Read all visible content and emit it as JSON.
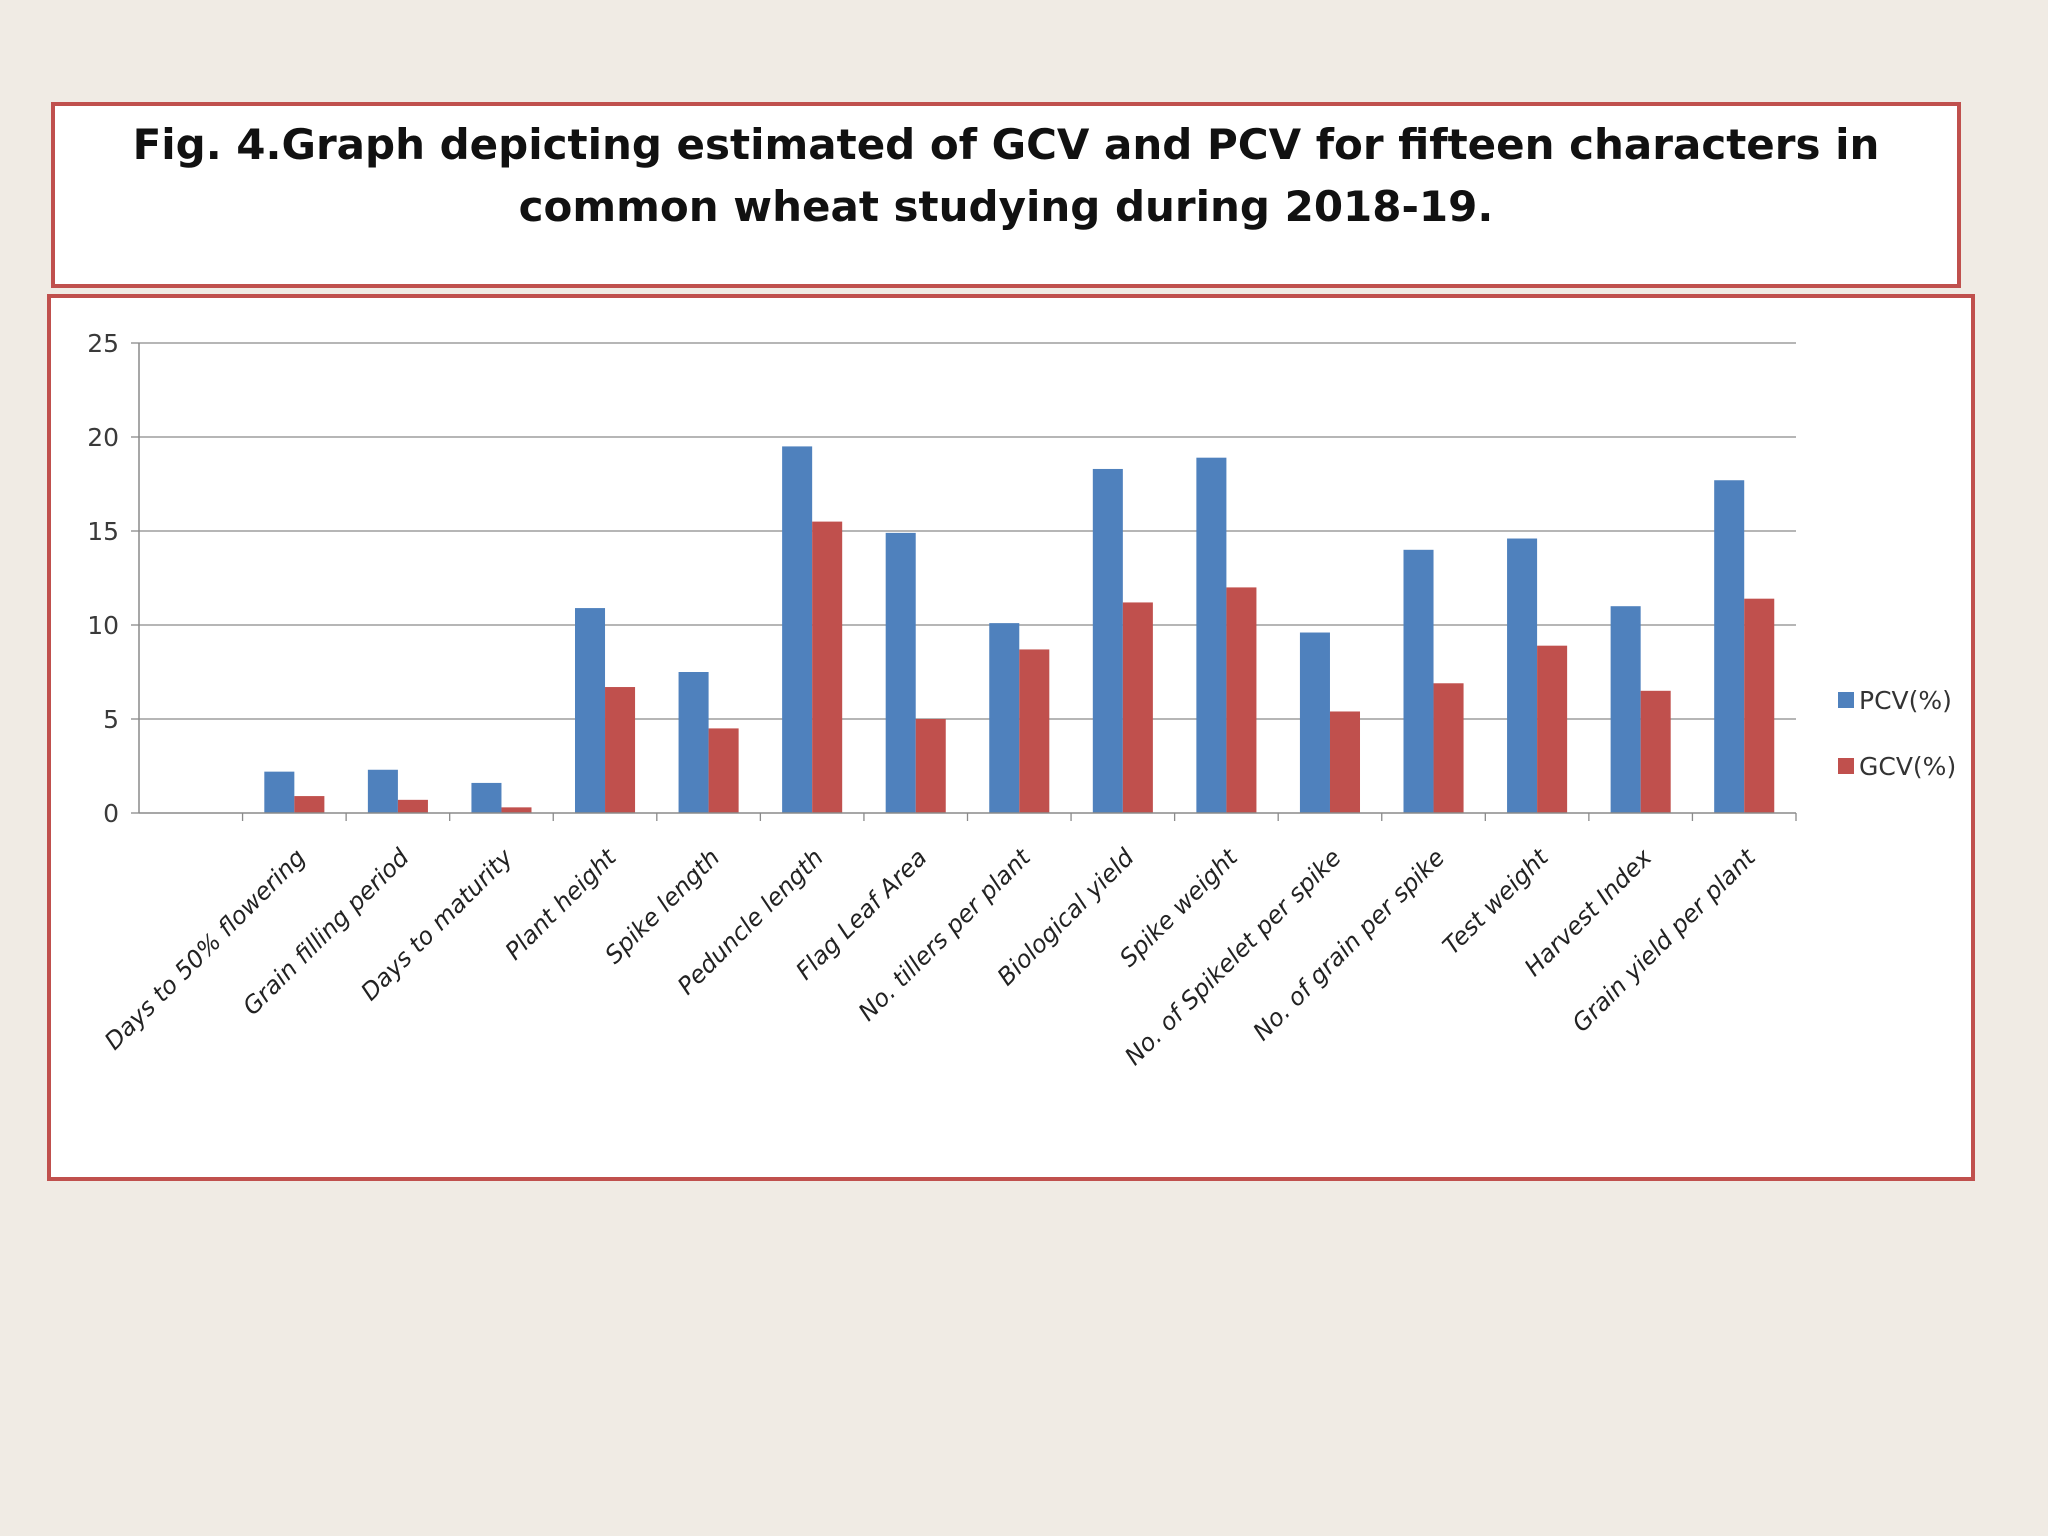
{
  "slide": {
    "title": "Fig. 4.Graph depicting estimated of GCV and PCV for fifteen characters in common wheat studying during 2018-19."
  },
  "chart_data": {
    "type": "bar",
    "title": "",
    "xlabel": "",
    "ylabel": "",
    "ylim": [
      0,
      25
    ],
    "yticks": [
      0,
      5,
      10,
      15,
      20,
      25
    ],
    "grid": true,
    "legend": "right",
    "categories": [
      "Days to 50% flowering",
      "Grain filling period",
      "Days to maturity",
      "Plant height",
      "Spike length",
      "Peduncle length",
      "Flag Leaf Area",
      "No. tillers per plant",
      "Biological yield",
      "Spike weight",
      "No. of Spikelet per spike",
      "No. of grain per spike",
      "Test weight",
      "Harvest Index",
      "Grain yield per plant"
    ],
    "series": [
      {
        "name": "PCV(%)",
        "color": "#4f81bd",
        "values": [
          2.2,
          2.3,
          1.6,
          10.9,
          7.5,
          19.5,
          14.9,
          10.1,
          18.3,
          18.9,
          9.6,
          14.0,
          14.6,
          11.0,
          17.7
        ]
      },
      {
        "name": "GCV(%)",
        "color": "#c0504d",
        "values": [
          0.9,
          0.7,
          0.3,
          6.7,
          4.5,
          15.5,
          5.0,
          8.7,
          11.2,
          12.0,
          5.4,
          6.9,
          8.9,
          6.5,
          11.4
        ]
      }
    ]
  }
}
